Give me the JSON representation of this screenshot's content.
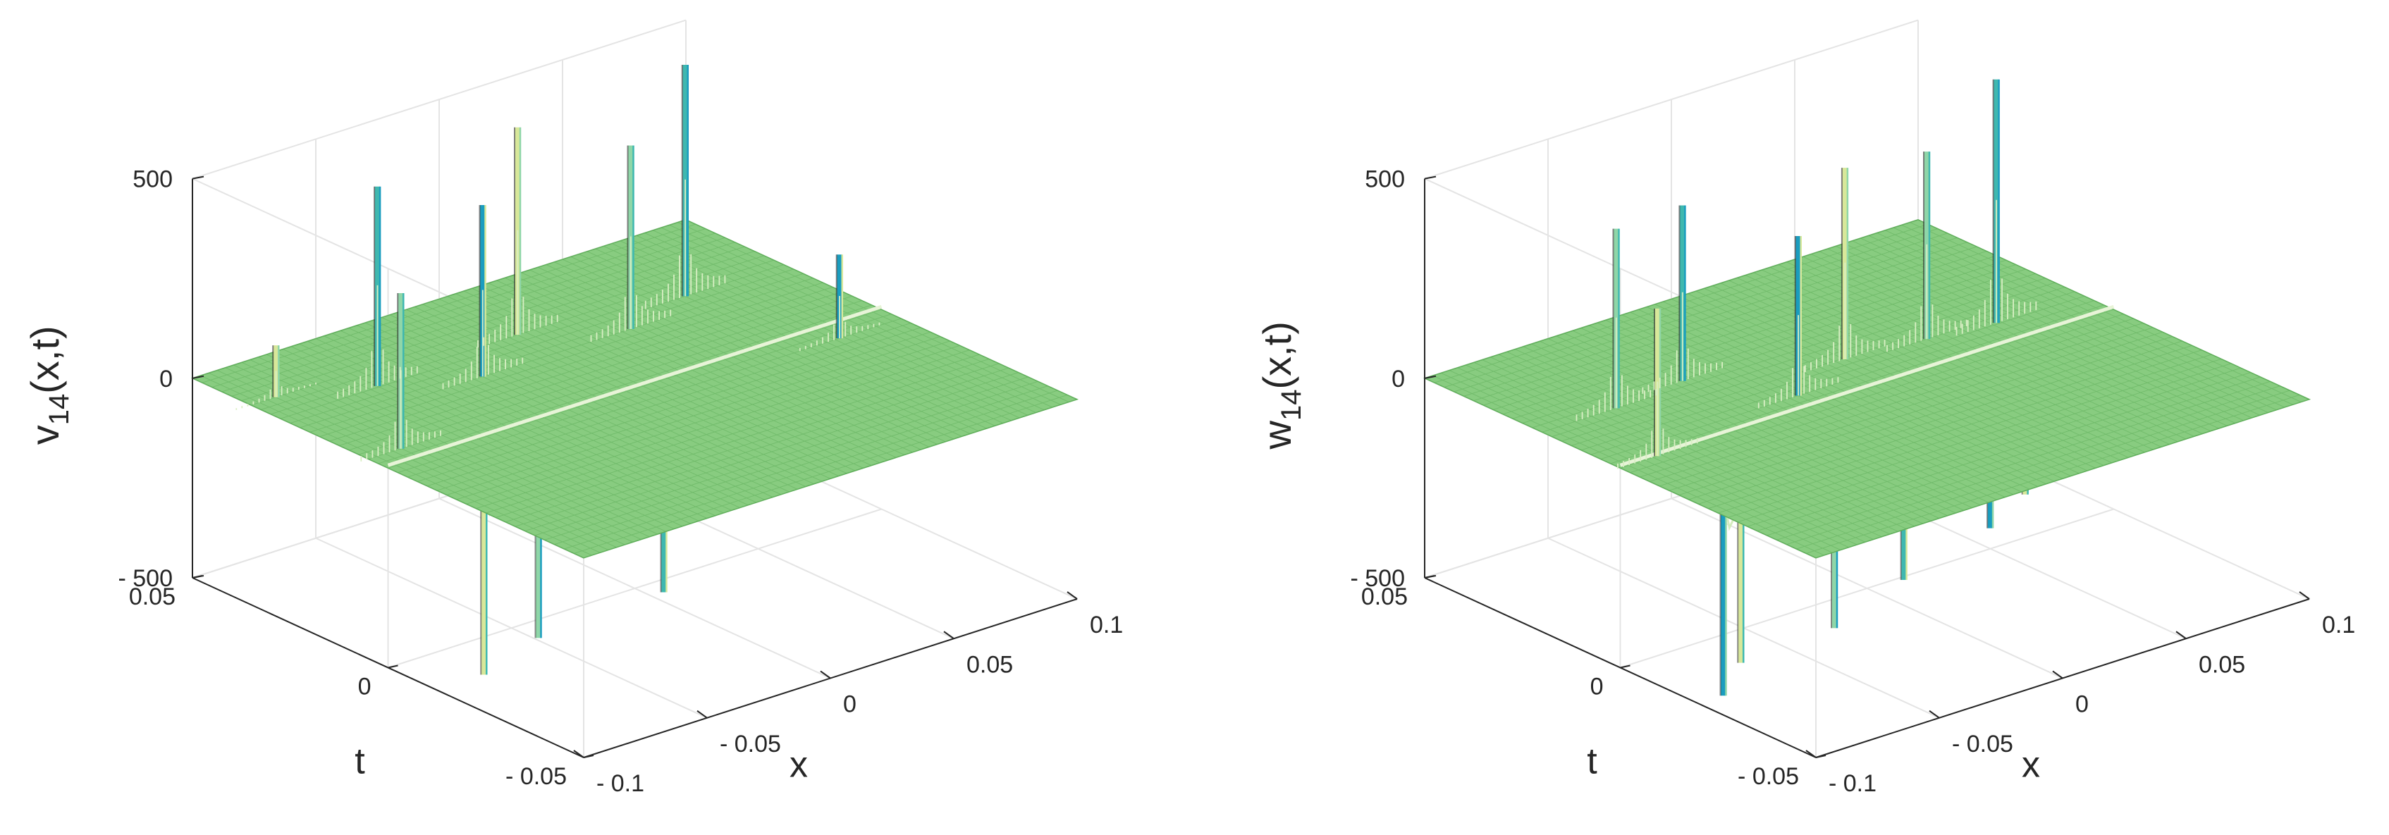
{
  "figure": {
    "background": "#ffffff",
    "surface_color": "#88cc80",
    "mesh_color": "#5fae5a",
    "spike_colors": [
      "#d8e89a",
      "#8fd6a8",
      "#3fb8b0",
      "#1a9dbf"
    ]
  },
  "chart_data": [
    {
      "type": "surface3d",
      "zlabel": "v₁₄(x,t)",
      "zlabel_main": "v",
      "zlabel_sub": "14",
      "zlabel_rest": "(x,t)",
      "xlabel": "x",
      "ylabel": "t",
      "xlim": [
        -0.1,
        0.1
      ],
      "ylim": [
        -0.05,
        0.05
      ],
      "zlim": [
        -500,
        500
      ],
      "xticks": [
        -0.1,
        -0.05,
        0,
        0.05,
        0.1
      ],
      "xtick_labels": [
        "- 0.1",
        "- 0.05",
        "0",
        "0.05",
        "0.1"
      ],
      "yticks": [
        -0.05,
        0,
        0.05
      ],
      "ytick_labels": [
        "- 0.05",
        "0",
        "0.05"
      ],
      "zticks": [
        -500,
        0,
        500
      ],
      "ztick_labels": [
        "- 500",
        "0",
        "500"
      ],
      "ridge": {
        "t": 0.0,
        "x_from": -0.1,
        "x_to": 0.1
      },
      "spikes": [
        {
          "x": -0.09,
          "t": 0.035,
          "z": 130
        },
        {
          "x": -0.087,
          "t": 0.005,
          "z": 390
        },
        {
          "x": -0.06,
          "t": 0.028,
          "z": 500
        },
        {
          "x": -0.03,
          "t": 0.02,
          "z": 430
        },
        {
          "x": 0.0,
          "t": 0.03,
          "z": 520
        },
        {
          "x": 0.03,
          "t": 0.02,
          "z": 460
        },
        {
          "x": 0.06,
          "t": 0.025,
          "z": 580
        },
        {
          "x": 0.075,
          "t": -0.005,
          "z": 210
        },
        {
          "x": -0.085,
          "t": -0.015,
          "z": -480
        },
        {
          "x": -0.055,
          "t": -0.01,
          "z": -470
        },
        {
          "x": -0.02,
          "t": -0.02,
          "z": -380
        },
        {
          "x": 0.01,
          "t": -0.012,
          "z": -240
        },
        {
          "x": 0.045,
          "t": -0.012,
          "z": -210
        }
      ]
    },
    {
      "type": "surface3d",
      "zlabel": "w₁₄(x,t)",
      "zlabel_main": "w",
      "zlabel_sub": "14",
      "zlabel_rest": "(x,t)",
      "xlabel": "x",
      "ylabel": "t",
      "xlim": [
        -0.1,
        0.1
      ],
      "ylim": [
        -0.05,
        0.05
      ],
      "zlim": [
        -500,
        500
      ],
      "xticks": [
        -0.1,
        -0.05,
        0,
        0.05,
        0.1
      ],
      "xtick_labels": [
        "- 0.1",
        "- 0.05",
        "0",
        "0.05",
        "0.1"
      ],
      "yticks": [
        -0.05,
        0,
        0.05
      ],
      "ytick_labels": [
        "- 0.05",
        "0",
        "0.05"
      ],
      "zticks": [
        -500,
        0,
        500
      ],
      "ztick_labels": [
        "- 500",
        "0",
        "500"
      ],
      "ridge": {
        "t": 0.0,
        "x_from": -0.1,
        "x_to": 0.1
      },
      "spikes": [
        {
          "x": -0.085,
          "t": 0.0,
          "z": 370
        },
        {
          "x": -0.07,
          "t": 0.02,
          "z": 450
        },
        {
          "x": -0.04,
          "t": 0.022,
          "z": 440
        },
        {
          "x": -0.02,
          "t": 0.005,
          "z": 400
        },
        {
          "x": 0.01,
          "t": 0.012,
          "z": 480
        },
        {
          "x": 0.04,
          "t": 0.01,
          "z": 470
        },
        {
          "x": 0.065,
          "t": 0.008,
          "z": 610
        },
        {
          "x": -0.09,
          "t": -0.02,
          "z": -500
        },
        {
          "x": -0.075,
          "t": -0.015,
          "z": -470
        },
        {
          "x": -0.045,
          "t": -0.02,
          "z": -420
        },
        {
          "x": -0.02,
          "t": -0.022,
          "z": -340
        },
        {
          "x": 0.015,
          "t": -0.022,
          "z": -280
        },
        {
          "x": 0.045,
          "t": -0.012,
          "z": -300
        },
        {
          "x": 0.07,
          "t": -0.02,
          "z": -220
        }
      ]
    }
  ]
}
